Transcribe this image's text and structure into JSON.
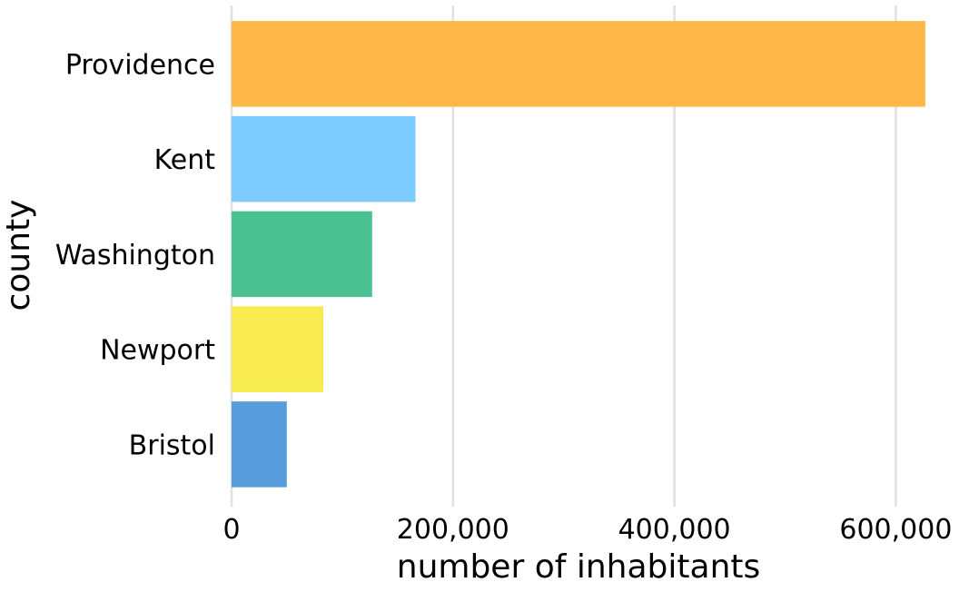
{
  "chart_data": {
    "type": "bar",
    "orientation": "horizontal",
    "categories": [
      "Providence",
      "Kent",
      "Washington",
      "Newport",
      "Bristol"
    ],
    "values": [
      626667,
      166158,
      126979,
      82888,
      49875
    ],
    "colors": [
      "#FFB74A",
      "#7ECBFF",
      "#4CC293",
      "#F8EB4F",
      "#579DDB"
    ],
    "xlabel": "number of inhabitants",
    "ylabel": "county",
    "xlim": [
      0,
      640000
    ],
    "xticks": [
      0,
      200000,
      400000,
      600000
    ],
    "xtick_labels": [
      "0",
      "200,000",
      "400,000",
      "600,000"
    ],
    "grid": "vertical",
    "legend": "none"
  }
}
